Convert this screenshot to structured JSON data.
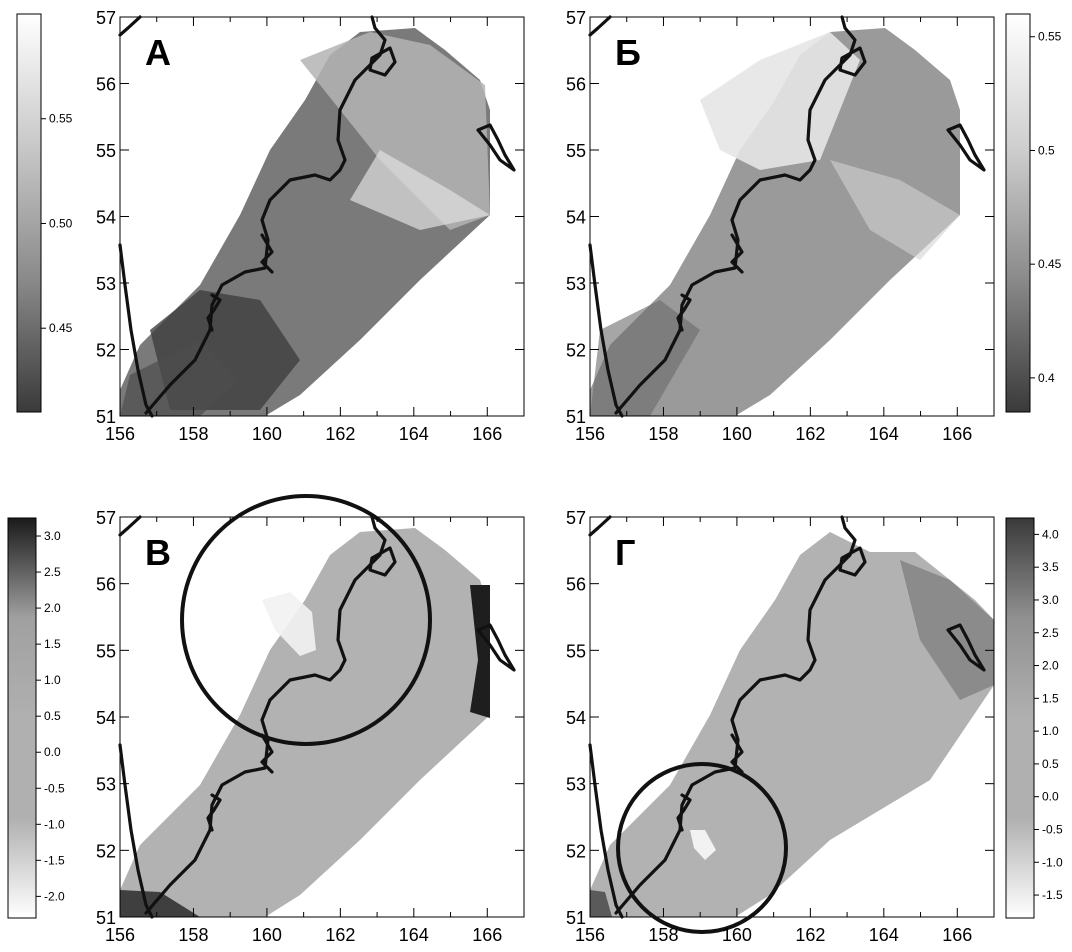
{
  "x_tick_labels": [
    "156",
    "158",
    "160",
    "162",
    "164",
    "166"
  ],
  "y_tick_labels": [
    "51",
    "52",
    "53",
    "54",
    "55",
    "56",
    "57"
  ],
  "panels": [
    {
      "id": "A",
      "letter": "А",
      "colorbar_side": "left",
      "colorbar_ticks": [
        "0.55",
        "0.50",
        "0.45"
      ],
      "colorbar_range": [
        0.41,
        0.6
      ],
      "colorbar_tick_values": [
        0.55,
        0.5,
        0.45
      ],
      "colorbar_gradient": [
        "#3a3a3a",
        "#8a8a8a",
        "#c8c8c8",
        "#ffffff"
      ]
    },
    {
      "id": "B",
      "letter": "Б",
      "colorbar_side": "right",
      "colorbar_ticks": [
        "0.55",
        "0.5",
        "0.45",
        "0.4"
      ],
      "colorbar_range": [
        0.385,
        0.56
      ],
      "colorbar_tick_values": [
        0.55,
        0.5,
        0.45,
        0.4
      ],
      "colorbar_gradient": [
        "#3a3a3a",
        "#8a8a8a",
        "#cfcfcf",
        "#ffffff"
      ]
    },
    {
      "id": "C",
      "letter": "В",
      "colorbar_side": "left",
      "colorbar_ticks": [
        "3.0",
        "2.5",
        "2.0",
        "1.5",
        "1.0",
        "0.5",
        "0.0",
        "-0.5",
        "-1.0",
        "-1.5",
        "-2.0"
      ],
      "colorbar_range": [
        -2.3,
        3.25
      ],
      "colorbar_tick_values": [
        3.0,
        2.5,
        2.0,
        1.5,
        1.0,
        0.5,
        0.0,
        -0.5,
        -1.0,
        -1.5,
        -2.0
      ],
      "colorbar_gradient": [
        "#ffffff",
        "#b0b0b0",
        "#b0b0b0",
        "#a0a0a0",
        "#1a1a1a"
      ]
    },
    {
      "id": "D",
      "letter": "Г",
      "colorbar_side": "right",
      "colorbar_ticks": [
        "4.0",
        "3.5",
        "3.0",
        "2.5",
        "2.0",
        "1.5",
        "1.0",
        "0.5",
        "0.0",
        "-0.5",
        "-1.0",
        "-1.5"
      ],
      "colorbar_range": [
        -1.85,
        4.25
      ],
      "colorbar_tick_values": [
        4.0,
        3.5,
        3.0,
        2.5,
        2.0,
        1.5,
        1.0,
        0.5,
        0.0,
        -0.5,
        -1.0,
        -1.5
      ],
      "colorbar_gradient": [
        "#ffffff",
        "#b0b0b0",
        "#b0b0b0",
        "#909090",
        "#3a3a3a"
      ]
    }
  ]
}
